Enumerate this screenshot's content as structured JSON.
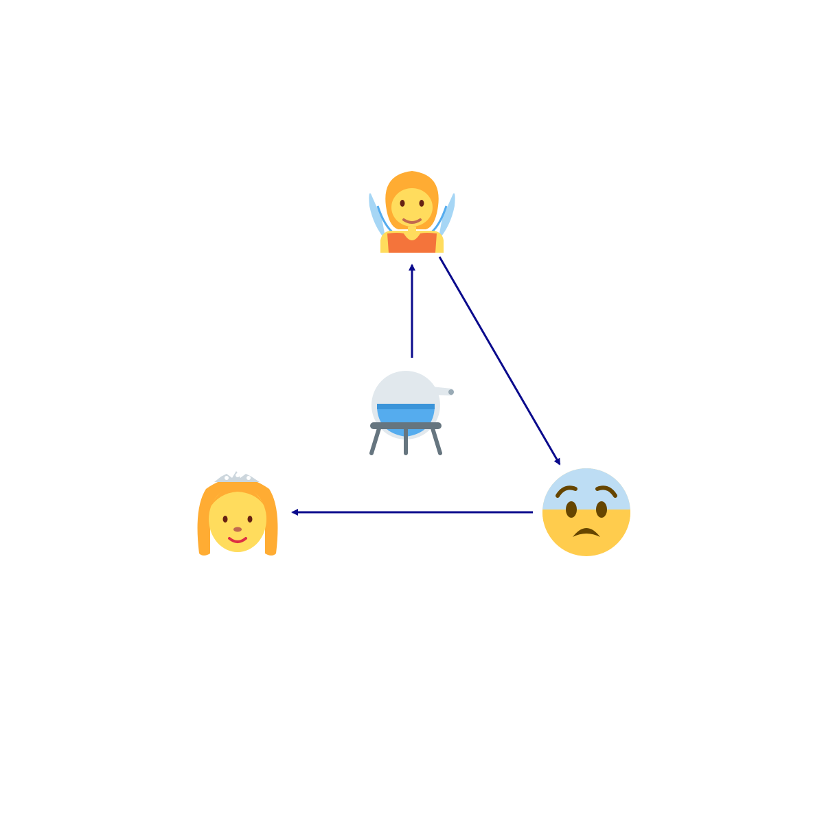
{
  "diagram": {
    "nodes": [
      {
        "id": "fairy",
        "icon": "fairy-icon"
      },
      {
        "id": "anxious",
        "icon": "anxious-face-icon"
      },
      {
        "id": "princess",
        "icon": "princess-icon"
      },
      {
        "id": "alembic",
        "icon": "alembic-icon"
      }
    ],
    "edges": [
      {
        "from": "alembic",
        "to": "fairy"
      },
      {
        "from": "fairy",
        "to": "anxious"
      },
      {
        "from": "anxious",
        "to": "princess"
      }
    ],
    "colors": {
      "arrow": "#0a0a8c",
      "skin": "#ffdc5d",
      "hair": "#ffac33",
      "wing": "#a6d6f5",
      "dress": "#f4743b",
      "flask_glass": "#e1e8ed",
      "flask_liquid": "#55acee",
      "stand": "#66757f",
      "tiara": "#ccd6dd",
      "brow_mouth": "#664500",
      "lip": "#dd2e44",
      "nose": "#c1694f",
      "eye": "#662113"
    }
  }
}
